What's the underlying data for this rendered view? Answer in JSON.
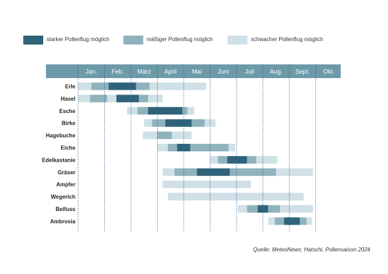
{
  "legend": {
    "strong": {
      "label": "starker Pollenflug möglich",
      "color": "#2f6379"
    },
    "moderate": {
      "label": "mäßiger Pollenflug möglich",
      "color": "#8fb2bd"
    },
    "weak": {
      "label": "schwacher Pollenflug möglich",
      "color": "#cfe0e6"
    }
  },
  "header_color": "#6d9aa9",
  "source": "Quelle: MeteoNews; Hatschi, Pollensaison 2024",
  "chart_data": {
    "type": "gantt",
    "x_unit": "month (1 = start of January, 11 = end of October)",
    "months": [
      "Jan.",
      "Feb.",
      "März",
      "April",
      "Mai",
      "Juni",
      "Juli",
      "Aug.",
      "Sept.",
      "Okt."
    ],
    "grid": "dotted vertical lines at month boundaries",
    "plants": [
      {
        "name": "Erle",
        "segments": [
          {
            "start": 1.0,
            "end": 1.5,
            "level": "weak"
          },
          {
            "start": 1.5,
            "end": 2.15,
            "level": "moderate"
          },
          {
            "start": 2.15,
            "end": 3.2,
            "level": "strong"
          },
          {
            "start": 3.2,
            "end": 3.7,
            "level": "moderate"
          },
          {
            "start": 3.7,
            "end": 4.3,
            "level": "weak"
          },
          {
            "start": 4.2,
            "end": 5.85,
            "level": "weak"
          }
        ]
      },
      {
        "name": "Hasel",
        "segments": [
          {
            "start": 1.0,
            "end": 1.45,
            "level": "weak"
          },
          {
            "start": 1.45,
            "end": 2.1,
            "level": "moderate"
          },
          {
            "start": 2.1,
            "end": 2.45,
            "level": "weak"
          },
          {
            "start": 2.45,
            "end": 3.3,
            "level": "strong"
          },
          {
            "start": 3.3,
            "end": 3.65,
            "level": "moderate"
          },
          {
            "start": 3.65,
            "end": 4.2,
            "level": "weak"
          }
        ]
      },
      {
        "name": "Esche",
        "segments": [
          {
            "start": 2.85,
            "end": 3.25,
            "level": "weak"
          },
          {
            "start": 3.25,
            "end": 3.65,
            "level": "moderate"
          },
          {
            "start": 3.65,
            "end": 4.95,
            "level": "strong"
          },
          {
            "start": 4.95,
            "end": 5.15,
            "level": "moderate"
          },
          {
            "start": 5.15,
            "end": 5.4,
            "level": "weak"
          }
        ]
      },
      {
        "name": "Birke",
        "segments": [
          {
            "start": 3.5,
            "end": 3.8,
            "level": "weak"
          },
          {
            "start": 3.8,
            "end": 4.3,
            "level": "moderate"
          },
          {
            "start": 4.3,
            "end": 5.3,
            "level": "strong"
          },
          {
            "start": 5.3,
            "end": 5.8,
            "level": "moderate"
          },
          {
            "start": 5.8,
            "end": 6.2,
            "level": "weak"
          }
        ]
      },
      {
        "name": "Hagebuche",
        "segments": [
          {
            "start": 3.45,
            "end": 4.0,
            "level": "weak"
          },
          {
            "start": 4.0,
            "end": 4.55,
            "level": "moderate"
          },
          {
            "start": 4.55,
            "end": 5.3,
            "level": "weak"
          }
        ]
      },
      {
        "name": "Eiche",
        "segments": [
          {
            "start": 4.0,
            "end": 4.4,
            "level": "weak"
          },
          {
            "start": 4.4,
            "end": 4.75,
            "level": "moderate"
          },
          {
            "start": 4.75,
            "end": 5.25,
            "level": "strong"
          },
          {
            "start": 5.25,
            "end": 6.7,
            "level": "moderate"
          },
          {
            "start": 6.7,
            "end": 6.95,
            "level": "weak"
          }
        ]
      },
      {
        "name": "Edelkastanie",
        "segments": [
          {
            "start": 6.0,
            "end": 6.3,
            "level": "weak"
          },
          {
            "start": 6.3,
            "end": 6.65,
            "level": "moderate"
          },
          {
            "start": 6.65,
            "end": 7.4,
            "level": "strong"
          },
          {
            "start": 7.4,
            "end": 7.75,
            "level": "moderate"
          },
          {
            "start": 7.75,
            "end": 8.55,
            "level": "weak"
          }
        ]
      },
      {
        "name": "Gräser",
        "segments": [
          {
            "start": 4.2,
            "end": 4.65,
            "level": "weak"
          },
          {
            "start": 4.65,
            "end": 5.5,
            "level": "moderate"
          },
          {
            "start": 5.5,
            "end": 6.75,
            "level": "strong"
          },
          {
            "start": 6.75,
            "end": 8.5,
            "level": "moderate"
          },
          {
            "start": 8.5,
            "end": 9.9,
            "level": "weak"
          }
        ]
      },
      {
        "name": "Ampfer",
        "segments": [
          {
            "start": 4.2,
            "end": 7.55,
            "level": "weak"
          }
        ]
      },
      {
        "name": "Wegerich",
        "segments": [
          {
            "start": 4.4,
            "end": 9.55,
            "level": "weak"
          }
        ]
      },
      {
        "name": "Beifuss",
        "segments": [
          {
            "start": 7.05,
            "end": 7.4,
            "level": "weak"
          },
          {
            "start": 7.4,
            "end": 7.8,
            "level": "moderate"
          },
          {
            "start": 7.8,
            "end": 8.2,
            "level": "strong"
          },
          {
            "start": 8.2,
            "end": 8.65,
            "level": "moderate"
          },
          {
            "start": 8.65,
            "end": 9.9,
            "level": "weak"
          }
        ]
      },
      {
        "name": "Ambrosia",
        "segments": [
          {
            "start": 8.2,
            "end": 8.45,
            "level": "weak"
          },
          {
            "start": 8.45,
            "end": 8.8,
            "level": "moderate"
          },
          {
            "start": 8.8,
            "end": 9.4,
            "level": "strong"
          },
          {
            "start": 9.4,
            "end": 9.65,
            "level": "moderate"
          },
          {
            "start": 9.65,
            "end": 9.85,
            "level": "weak"
          }
        ]
      }
    ]
  }
}
